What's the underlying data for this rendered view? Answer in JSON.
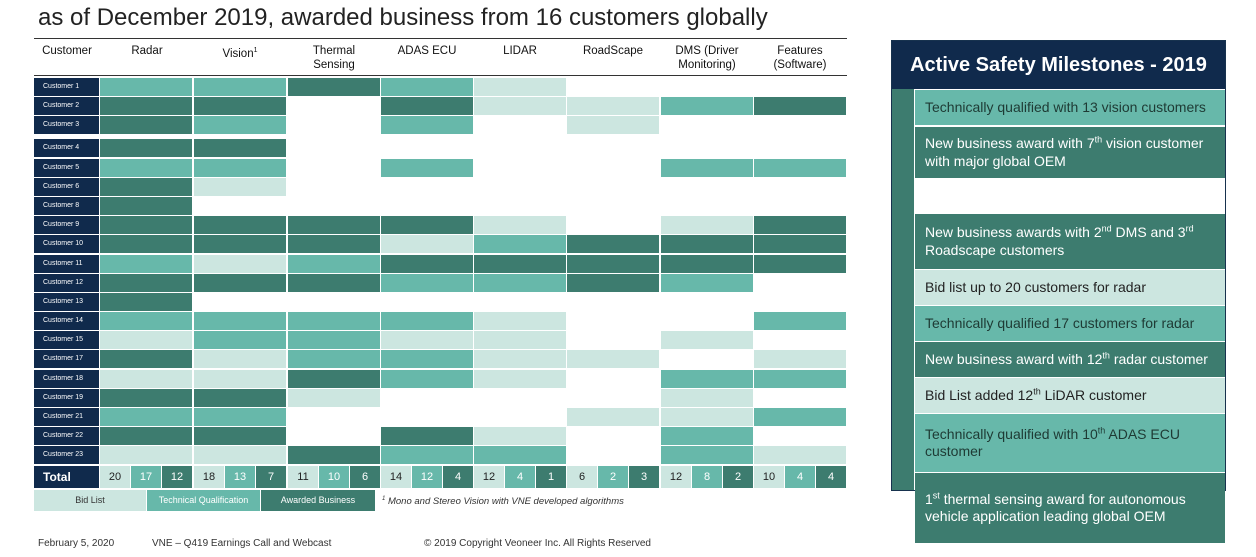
{
  "title": "as of December 2019, awarded business from 16 customers globally",
  "colors": {
    "bid_list": "#cce6e0",
    "technical_qualification": "#67b8aa",
    "awarded_business": "#3d7c6f",
    "label_bg": "#102a4c",
    "empty": "#ffffff"
  },
  "table": {
    "headers": [
      {
        "lines": [
          "Customer"
        ]
      },
      {
        "lines": [
          "Radar"
        ]
      },
      {
        "lines": [
          "Vision"
        ],
        "sup": "1"
      },
      {
        "lines": [
          "Thermal",
          "Sensing"
        ]
      },
      {
        "lines": [
          "ADAS ECU"
        ]
      },
      {
        "lines": [
          "LIDAR"
        ]
      },
      {
        "lines": [
          "RoadScape"
        ]
      },
      {
        "lines": [
          "DMS (Driver",
          "Monitoring)"
        ]
      },
      {
        "lines": [
          "Features",
          "(Software)"
        ]
      }
    ],
    "rows": [
      {
        "customer": "Customer 1",
        "cells": [
          "T",
          "T",
          "A",
          "T",
          "B",
          "0",
          "0",
          "0"
        ]
      },
      {
        "customer": "Customer 2",
        "cells": [
          "A",
          "A",
          "0",
          "A",
          "B",
          "B",
          "T",
          "A"
        ]
      },
      {
        "customer": "Customer 3",
        "cells": [
          "A",
          "T",
          "0",
          "T",
          "0",
          "B",
          "0",
          "0"
        ]
      },
      {
        "customer": "Customer 4",
        "cells": [
          "A",
          "A",
          "0",
          "0",
          "0",
          "0",
          "0",
          "0"
        ]
      },
      {
        "customer": "Customer 5",
        "cells": [
          "T",
          "T",
          "0",
          "T",
          "0",
          "0",
          "T",
          "T"
        ]
      },
      {
        "customer": "Customer 6",
        "cells": [
          "A",
          "B",
          "0",
          "0",
          "0",
          "0",
          "0",
          "0"
        ]
      },
      {
        "customer": "Customer 8",
        "cells": [
          "A",
          "0",
          "0",
          "0",
          "0",
          "0",
          "0",
          "0"
        ]
      },
      {
        "customer": "Customer 9",
        "cells": [
          "A",
          "A",
          "A",
          "A",
          "B",
          "0",
          "B",
          "A"
        ]
      },
      {
        "customer": "Customer 10",
        "cells": [
          "A",
          "A",
          "A",
          "B",
          "T",
          "A",
          "A",
          "A"
        ]
      },
      {
        "customer": "Customer 11",
        "cells": [
          "T",
          "B",
          "T",
          "A",
          "A",
          "A",
          "A",
          "A"
        ]
      },
      {
        "customer": "Customer 12",
        "cells": [
          "A",
          "A",
          "A",
          "T",
          "T",
          "A",
          "T",
          "0"
        ]
      },
      {
        "customer": "Customer 13",
        "cells": [
          "A",
          "0",
          "0",
          "0",
          "0",
          "0",
          "0",
          "0"
        ]
      },
      {
        "customer": "Customer 14",
        "cells": [
          "T",
          "T",
          "T",
          "T",
          "B",
          "0",
          "0",
          "T"
        ]
      },
      {
        "customer": "Customer 15",
        "cells": [
          "B",
          "T",
          "T",
          "B",
          "B",
          "0",
          "B",
          "0"
        ]
      },
      {
        "customer": "Customer 17",
        "cells": [
          "A",
          "B",
          "T",
          "T",
          "B",
          "B",
          "0",
          "B"
        ]
      },
      {
        "customer": "Customer 18",
        "cells": [
          "B",
          "B",
          "A",
          "T",
          "B",
          "0",
          "T",
          "T"
        ]
      },
      {
        "customer": "Customer 19",
        "cells": [
          "A",
          "A",
          "B",
          "0",
          "0",
          "0",
          "B",
          "0"
        ]
      },
      {
        "customer": "Customer 21",
        "cells": [
          "T",
          "T",
          "0",
          "0",
          "0",
          "B",
          "B",
          "T"
        ]
      },
      {
        "customer": "Customer 22",
        "cells": [
          "A",
          "A",
          "0",
          "A",
          "B",
          "0",
          "T",
          "0"
        ]
      },
      {
        "customer": "Customer 23",
        "cells": [
          "B",
          "B",
          "A",
          "T",
          "T",
          "0",
          "T",
          "B"
        ]
      }
    ],
    "total_label": "Total",
    "totals": [
      "20",
      "17",
      "12",
      "18",
      "13",
      "7",
      "11",
      "10",
      "6",
      "14",
      "12",
      "4",
      "12",
      "4",
      "1",
      "6",
      "2",
      "3",
      "12",
      "8",
      "2",
      "10",
      "4",
      "4"
    ]
  },
  "legend": [
    {
      "label": "Bid List",
      "type": "B"
    },
    {
      "label": "Technical Qualification",
      "type": "T"
    },
    {
      "label": "Awarded Business",
      "type": "A"
    }
  ],
  "footnote": {
    "sup": "1",
    "text": "Mono and Stereo Vision with VNE developed algorithms"
  },
  "footer": {
    "date": "February 5, 2020",
    "event": "VNE – Q419 Earnings Call and Webcast",
    "copyright": "© 2019 Copyright Veoneer Inc. All Rights Reserved"
  },
  "panel": {
    "title": "Active Safety Milestones - 2019",
    "items": [
      {
        "parts": [
          {
            "t": "Technically qualified with 13 vision customers"
          }
        ],
        "style": "T"
      },
      {
        "parts": [
          {
            "t": "New business award with 7"
          },
          {
            "sup": "th"
          },
          {
            "t": " vision customer with major global OEM"
          }
        ],
        "style": "A"
      },
      {
        "parts": [
          {
            "t": "New business awards with 2"
          },
          {
            "sup": "nd"
          },
          {
            "t": " DMS and 3"
          },
          {
            "sup": "rd"
          },
          {
            "t": " Roadscape customers"
          }
        ],
        "style": "A"
      },
      {
        "parts": [
          {
            "t": "Bid list up to 20 customers for radar"
          }
        ],
        "style": "B"
      },
      {
        "parts": [
          {
            "t": "Technically qualified 17 customers for radar"
          }
        ],
        "style": "T"
      },
      {
        "parts": [
          {
            "t": "New business award with 12"
          },
          {
            "sup": "th"
          },
          {
            "t": " radar customer"
          }
        ],
        "style": "A"
      },
      {
        "parts": [
          {
            "t": "Bid List added 12"
          },
          {
            "sup": "th"
          },
          {
            "t": " LiDAR customer"
          }
        ],
        "style": "B"
      },
      {
        "parts": [
          {
            "t": "Technically qualified with 10"
          },
          {
            "sup": "th"
          },
          {
            "t": " ADAS ECU customer"
          }
        ],
        "style": "T"
      },
      {
        "parts": [
          {
            "sup": "1st"
          },
          {
            "t": " thermal sensing award for autonomous vehicle application leading global OEM"
          }
        ],
        "style": "A"
      }
    ]
  }
}
